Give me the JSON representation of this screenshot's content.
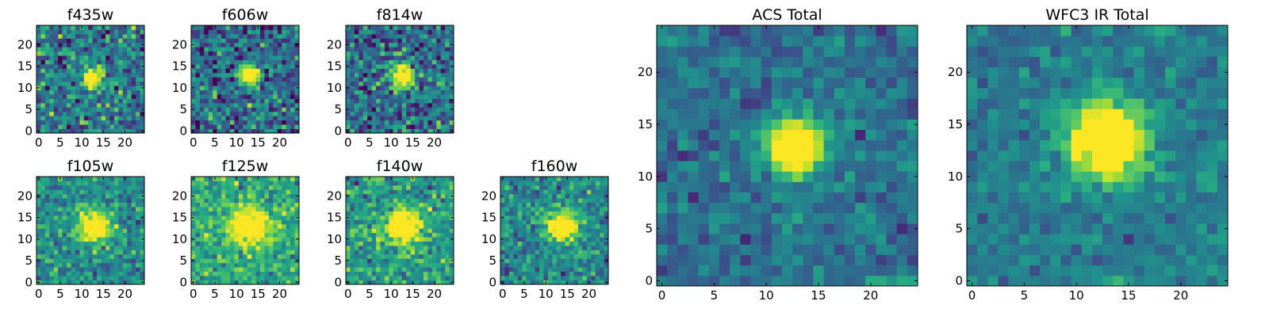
{
  "figure": {
    "background": "#ffffff",
    "colormap": "viridis"
  },
  "chart_data": [
    {
      "type": "heatmap",
      "title": "f435w",
      "grid_size": 25,
      "source_center": [
        12.5,
        12.5
      ],
      "source_sigma": 1.6,
      "source_peak": 1.0,
      "noise": 0.3,
      "baseline": 0.42,
      "xticks": [
        0,
        5,
        10,
        15,
        20
      ],
      "yticks": [
        0,
        5,
        10,
        15,
        20
      ],
      "xlim": [
        -0.5,
        24.5
      ],
      "ylim": [
        -0.5,
        24.5
      ],
      "seed": 11
    },
    {
      "type": "heatmap",
      "title": "f606w",
      "grid_size": 25,
      "source_center": [
        13,
        13
      ],
      "source_sigma": 1.6,
      "source_peak": 1.0,
      "noise": 0.3,
      "baseline": 0.35,
      "xticks": [
        0,
        5,
        10,
        15,
        20
      ],
      "yticks": [
        0,
        5,
        10,
        15,
        20
      ],
      "xlim": [
        -0.5,
        24.5
      ],
      "ylim": [
        -0.5,
        24.5
      ],
      "seed": 23
    },
    {
      "type": "heatmap",
      "title": "f814w",
      "grid_size": 25,
      "source_center": [
        13,
        13
      ],
      "source_sigma": 1.8,
      "source_peak": 1.0,
      "noise": 0.3,
      "baseline": 0.38,
      "xticks": [
        0,
        5,
        10,
        15,
        20
      ],
      "yticks": [
        0,
        5,
        10,
        15,
        20
      ],
      "xlim": [
        -0.5,
        24.5
      ],
      "ylim": [
        -0.5,
        24.5
      ],
      "seed": 37
    },
    {
      "type": "heatmap",
      "title": "f105w",
      "grid_size": 25,
      "source_center": [
        13,
        13
      ],
      "source_sigma": 2.4,
      "source_peak": 0.9,
      "noise": 0.22,
      "baseline": 0.5,
      "xticks": [
        0,
        5,
        10,
        15,
        20
      ],
      "yticks": [
        0,
        5,
        10,
        15,
        20
      ],
      "xlim": [
        -0.5,
        24.5
      ],
      "ylim": [
        -0.5,
        24.5
      ],
      "seed": 41
    },
    {
      "type": "heatmap",
      "title": "f125w",
      "grid_size": 25,
      "source_center": [
        13,
        13
      ],
      "source_sigma": 3.0,
      "source_peak": 0.7,
      "noise": 0.22,
      "baseline": 0.62,
      "xticks": [
        0,
        5,
        10,
        15,
        20
      ],
      "yticks": [
        0,
        5,
        10,
        15,
        20
      ],
      "xlim": [
        -0.5,
        24.5
      ],
      "ylim": [
        -0.5,
        24.5
      ],
      "seed": 53
    },
    {
      "type": "heatmap",
      "title": "f140w",
      "grid_size": 25,
      "source_center": [
        13,
        13
      ],
      "source_sigma": 2.6,
      "source_peak": 0.8,
      "noise": 0.22,
      "baseline": 0.55,
      "xticks": [
        0,
        5,
        10,
        15,
        20
      ],
      "yticks": [
        0,
        5,
        10,
        15,
        20
      ],
      "xlim": [
        -0.5,
        24.5
      ],
      "ylim": [
        -0.5,
        24.5
      ],
      "seed": 67
    },
    {
      "type": "heatmap",
      "title": "f160w",
      "grid_size": 25,
      "source_center": [
        13.5,
        13
      ],
      "source_sigma": 2.4,
      "source_peak": 0.85,
      "noise": 0.22,
      "baseline": 0.48,
      "xticks": [
        0,
        5,
        10,
        15,
        20
      ],
      "yticks": [
        0,
        5,
        10,
        15,
        20
      ],
      "xlim": [
        -0.5,
        24.5
      ],
      "ylim": [
        -0.5,
        24.5
      ],
      "seed": 79
    },
    {
      "type": "heatmap",
      "title": "ACS Total",
      "grid_size": 25,
      "source_center": [
        12.8,
        12.8
      ],
      "source_sigma": 1.9,
      "source_peak": 1.0,
      "noise": 0.16,
      "baseline": 0.38,
      "xticks": [
        0,
        5,
        10,
        15,
        20
      ],
      "yticks": [
        0,
        5,
        10,
        15,
        20
      ],
      "xlim": [
        -0.5,
        24.5
      ],
      "ylim": [
        -0.5,
        24.5
      ],
      "seed": 83
    },
    {
      "type": "heatmap",
      "title": "WFC3 IR Total",
      "grid_size": 25,
      "source_center": [
        13,
        13.5
      ],
      "source_sigma": 2.6,
      "source_peak": 1.0,
      "noise": 0.14,
      "baseline": 0.42,
      "xticks": [
        0,
        5,
        10,
        15,
        20
      ],
      "yticks": [
        0,
        5,
        10,
        15,
        20
      ],
      "xlim": [
        -0.5,
        24.5
      ],
      "ylim": [
        -0.5,
        24.5
      ],
      "seed": 97
    }
  ]
}
